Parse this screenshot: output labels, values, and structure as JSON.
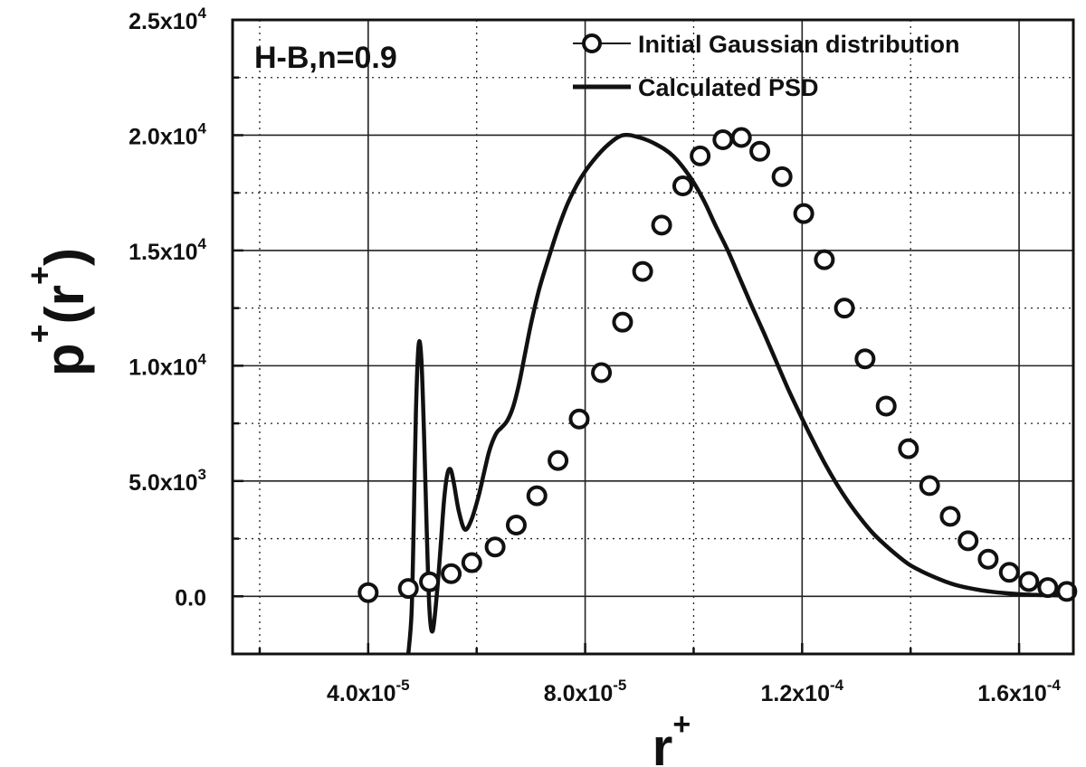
{
  "chart_data": {
    "type": "line",
    "annotation": "H-B,n=0.9",
    "xlabel": {
      "base": "r",
      "sup": "+"
    },
    "ylabel": {
      "base": "p",
      "sup": "+",
      "arg": "r",
      "arg_sup": "+"
    },
    "xlim": [
      1.5e-05,
      0.00017
    ],
    "ylim": [
      -2500,
      25000
    ],
    "xticks": [
      {
        "value": 4e-05,
        "mantissa": "4.0x10",
        "exp": "-5"
      },
      {
        "value": 8e-05,
        "mantissa": "8.0x10",
        "exp": "-5"
      },
      {
        "value": 0.00012,
        "mantissa": "1.2x10",
        "exp": "-4"
      },
      {
        "value": 0.00016,
        "mantissa": "1.6x10",
        "exp": "-4"
      }
    ],
    "yticks": [
      {
        "value": 0,
        "mantissa": "0.0",
        "exp": ""
      },
      {
        "value": 5000,
        "mantissa": "5.0x10",
        "exp": "3"
      },
      {
        "value": 10000,
        "mantissa": "1.0x10",
        "exp": "4"
      },
      {
        "value": 15000,
        "mantissa": "1.5x10",
        "exp": "4"
      },
      {
        "value": 20000,
        "mantissa": "2.0x10",
        "exp": "4"
      },
      {
        "value": 25000,
        "mantissa": "2.5x10",
        "exp": "4"
      }
    ],
    "grid": true,
    "legend_position": "top-right",
    "series": [
      {
        "name": "Initial Gaussian distribution",
        "style": "markers",
        "x": [
          4e-05,
          4.74e-05,
          5.13e-05,
          5.53e-05,
          5.91e-05,
          6.34e-05,
          6.73e-05,
          7.11e-05,
          7.5e-05,
          7.89e-05,
          8.3e-05,
          8.69e-05,
          9.06e-05,
          9.41e-05,
          9.8e-05,
          0.0001012,
          0.0001054,
          0.0001088,
          0.0001122,
          0.0001163,
          0.0001203,
          0.0001241,
          0.0001278,
          0.0001316,
          0.0001355,
          0.0001396,
          0.0001435,
          0.0001473,
          0.0001506,
          0.0001543,
          0.0001582,
          0.0001618,
          0.0001653,
          0.0001688,
          0.0001722,
          0.0001745
        ],
        "y": [
          160,
          340,
          630,
          980,
          1460,
          2140,
          3090,
          4360,
          5890,
          7690,
          9700,
          11890,
          14090,
          16100,
          17800,
          19100,
          19800,
          19900,
          19300,
          18200,
          16600,
          14600,
          12500,
          10300,
          8250,
          6400,
          4800,
          3470,
          2410,
          1610,
          1040,
          640,
          380,
          210,
          110,
          60
        ]
      },
      {
        "name": "Calculated PSD",
        "style": "line",
        "x": [
          4.74e-05,
          4.8e-05,
          4.84e-05,
          4.88e-05,
          4.93e-05,
          4.98e-05,
          5.03e-05,
          5.08e-05,
          5.13e-05,
          5.19e-05,
          5.27e-05,
          5.34e-05,
          5.4e-05,
          5.46e-05,
          5.52e-05,
          5.58e-05,
          5.67e-05,
          5.78e-05,
          5.9e-05,
          6.03e-05,
          6.13e-05,
          6.22e-05,
          6.29e-05,
          6.37e-05,
          6.45e-05,
          6.56e-05,
          6.67e-05,
          6.78e-05,
          6.89e-05,
          7e-05,
          7.15e-05,
          7.33e-05,
          7.51e-05,
          7.69e-05,
          7.91e-05,
          8.15e-05,
          8.43e-05,
          8.7e-05,
          9e-05,
          9.31e-05,
          9.62e-05,
          9.93e-05,
          0.0001018,
          0.000104,
          0.0001063,
          0.0001085,
          0.0001107,
          0.000113,
          0.0001152,
          0.0001174,
          0.0001196,
          0.0001219,
          0.0001241,
          0.0001263,
          0.0001285,
          0.0001307,
          0.000133,
          0.0001352,
          0.0001374,
          0.0001396,
          0.0001419,
          0.0001441,
          0.0001463,
          0.0001485,
          0.0001507,
          0.000153,
          0.0001552,
          0.0001574,
          0.0001596,
          0.0001619,
          0.0001641,
          0.0001663,
          0.0001685,
          0.0001707,
          0.000173,
          0.0001748
        ],
        "y": [
          -2500,
          -700,
          3200,
          8000,
          10900,
          10300,
          7000,
          2800,
          -600,
          -1500,
          200,
          2300,
          4200,
          5300,
          5500,
          4900,
          3700,
          2900,
          3300,
          4300,
          5300,
          6200,
          6700,
          7100,
          7300,
          7600,
          8200,
          9200,
          10500,
          11800,
          13300,
          14700,
          16000,
          17100,
          18100,
          18900,
          19600,
          20000,
          19900,
          19600,
          19100,
          18200,
          17200,
          16100,
          15000,
          13800,
          12600,
          11400,
          10200,
          9000,
          7900,
          6800,
          5800,
          4900,
          4100,
          3400,
          2750,
          2250,
          1800,
          1400,
          1100,
          860,
          650,
          480,
          360,
          260,
          190,
          140,
          100,
          70,
          55,
          45,
          35,
          30,
          25,
          20
        ]
      }
    ]
  }
}
